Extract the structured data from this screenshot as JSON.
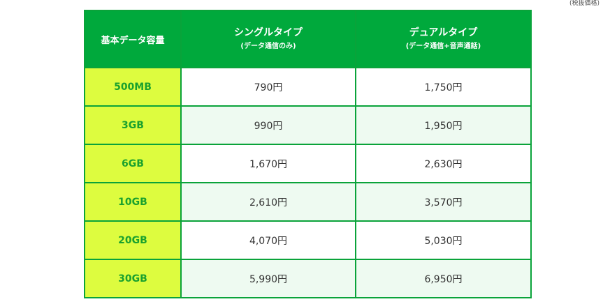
{
  "tax_note": "(税抜価格)",
  "header": {
    "capacity": "基本データ容量",
    "single": {
      "title": "シングルタイプ",
      "sub": "(データ通信のみ)"
    },
    "dual": {
      "title": "デュアルタイプ",
      "sub": "(データ通信+音声通話)"
    }
  },
  "rows": [
    {
      "capacity": "500MB",
      "single": "790円",
      "dual": "1,750円"
    },
    {
      "capacity": "3GB",
      "single": "990円",
      "dual": "1,950円"
    },
    {
      "capacity": "6GB",
      "single": "1,670円",
      "dual": "2,630円"
    },
    {
      "capacity": "10GB",
      "single": "2,610円",
      "dual": "3,570円"
    },
    {
      "capacity": "20GB",
      "single": "4,070円",
      "dual": "5,030円"
    },
    {
      "capacity": "30GB",
      "single": "5,990円",
      "dual": "6,950円"
    }
  ],
  "colors": {
    "header_green": "#00a93c",
    "border_green": "#0aa33a",
    "capacity_bg": "#ddfc3f",
    "capacity_text": "#1aa12e",
    "alt_row_bg": "#eefaf1"
  }
}
